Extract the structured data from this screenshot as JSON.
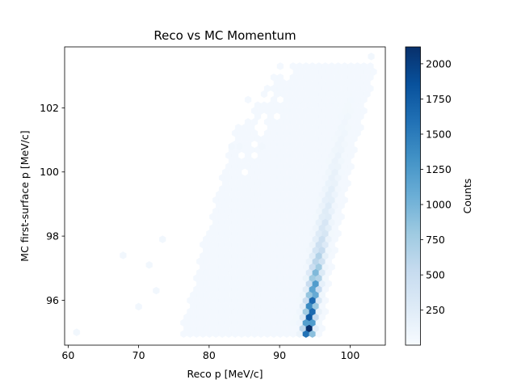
{
  "chart_data": {
    "type": "heatmap",
    "subtype": "hexbin",
    "title": "Reco vs MC Momentum",
    "xlabel": "Reco p [MeV/c]",
    "ylabel": "MC first-surface p [MeV/c]",
    "xlim": [
      59.5,
      105
    ],
    "ylim": [
      94.6,
      103.9
    ],
    "xticks": [
      60,
      70,
      80,
      90,
      100
    ],
    "yticks": [
      96,
      98,
      100,
      102
    ],
    "grid": false,
    "colormap": "Blues",
    "colorbar": {
      "label": "Counts",
      "min": 1,
      "max": 2120,
      "ticks": [
        250,
        500,
        750,
        1000,
        1250,
        1500,
        1750,
        2000
      ]
    },
    "ridge": [
      {
        "reco": 94.2,
        "mc": 95.1,
        "count": 2120
      },
      {
        "reco": 94.5,
        "mc": 95.5,
        "count": 1900
      },
      {
        "reco": 94.7,
        "mc": 95.9,
        "count": 1700
      },
      {
        "reco": 95.0,
        "mc": 96.3,
        "count": 1350
      },
      {
        "reco": 95.3,
        "mc": 96.8,
        "count": 1000
      },
      {
        "reco": 95.7,
        "mc": 97.3,
        "count": 700
      },
      {
        "reco": 96.2,
        "mc": 97.9,
        "count": 450
      },
      {
        "reco": 96.8,
        "mc": 98.6,
        "count": 300
      },
      {
        "reco": 97.5,
        "mc": 99.4,
        "count": 200
      },
      {
        "reco": 98.3,
        "mc": 100.3,
        "count": 130
      },
      {
        "reco": 99.3,
        "mc": 101.3,
        "count": 80
      },
      {
        "reco": 100.5,
        "mc": 102.3,
        "count": 45
      },
      {
        "reco": 102.0,
        "mc": 103.3,
        "count": 15
      }
    ],
    "outliers": [
      {
        "reco": 61.2,
        "mc": 95.0,
        "count": 1
      },
      {
        "reco": 67.8,
        "mc": 97.4,
        "count": 1
      },
      {
        "reco": 71.5,
        "mc": 97.1,
        "count": 1
      },
      {
        "reco": 73.4,
        "mc": 97.9,
        "count": 1
      },
      {
        "reco": 70.0,
        "mc": 95.8,
        "count": 1
      },
      {
        "reco": 72.5,
        "mc": 96.3,
        "count": 1
      },
      {
        "reco": 83.2,
        "mc": 100.8,
        "count": 1
      },
      {
        "reco": 84.3,
        "mc": 100.8,
        "count": 1
      },
      {
        "reco": 87.5,
        "mc": 100.8,
        "count": 1
      },
      {
        "reco": 103.0,
        "mc": 103.6,
        "count": 1
      }
    ]
  }
}
